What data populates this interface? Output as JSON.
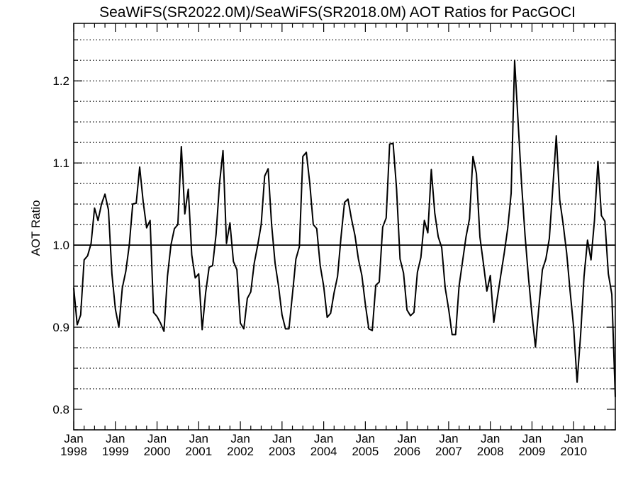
{
  "chart_data": {
    "type": "line",
    "title": "SeaWiFS(SR2022.0M)/SeaWiFS(SR2018.0M)  AOT Ratios for PacGOCI",
    "xlabel": "",
    "ylabel": "AOT Ratio",
    "xlim": [
      1998.0,
      2011.0
    ],
    "ylim": [
      0.775,
      1.27
    ],
    "yticks": [
      0.8,
      0.9,
      1.0,
      1.1,
      1.2
    ],
    "ytick_labels": [
      "0.8",
      "0.9",
      "1.0",
      "1.1",
      "1.2"
    ],
    "xticks": [
      1998,
      1999,
      2000,
      2001,
      2002,
      2003,
      2004,
      2005,
      2006,
      2007,
      2008,
      2009,
      2010
    ],
    "xtick_month": "Jan",
    "xtick_years": [
      "1998",
      "1999",
      "2000",
      "2001",
      "2002",
      "2003",
      "2004",
      "2005",
      "2006",
      "2007",
      "2008",
      "2009",
      "2010"
    ],
    "grid_y": [
      0.825,
      0.85,
      0.875,
      0.9,
      0.925,
      0.95,
      0.975,
      1.025,
      1.05,
      1.075,
      1.1,
      1.125,
      1.15,
      1.175,
      1.2,
      1.225,
      1.25
    ],
    "grid_style": "dotted horizontal",
    "reference_line": 1.0,
    "series": [
      {
        "x_start": 1998.0,
        "x_step": 0.08333,
        "values": [
          0.948,
          0.903,
          0.915,
          0.982,
          0.987,
          1.002,
          1.045,
          1.03,
          1.05,
          1.062,
          1.043,
          0.965,
          0.922,
          0.9,
          0.948,
          0.968,
          1.0,
          1.05,
          1.051,
          1.095,
          1.053,
          1.021,
          1.03,
          0.918,
          0.913,
          0.905,
          0.895,
          0.962,
          1.0,
          1.02,
          1.025,
          1.12,
          1.038,
          1.068,
          0.988,
          0.96,
          0.965,
          0.897,
          0.942,
          0.973,
          0.975,
          1.013,
          1.075,
          1.115,
          1.002,
          1.027,
          0.98,
          0.97,
          0.905,
          0.898,
          0.935,
          0.943,
          0.978,
          1.0,
          1.025,
          1.084,
          1.093,
          1.025,
          0.978,
          0.95,
          0.915,
          0.898,
          0.898,
          0.94,
          0.983,
          0.998,
          1.108,
          1.113,
          1.075,
          1.025,
          1.02,
          0.975,
          0.95,
          0.912,
          0.917,
          0.942,
          0.962,
          1.01,
          1.052,
          1.056,
          1.032,
          1.012,
          0.983,
          0.963,
          0.928,
          0.898,
          0.896,
          0.951,
          0.955,
          1.022,
          1.033,
          1.123,
          1.124,
          1.068,
          0.983,
          0.966,
          0.921,
          0.914,
          0.918,
          0.967,
          0.985,
          1.03,
          1.015,
          1.092,
          1.039,
          1.01,
          0.997,
          0.948,
          0.922,
          0.891,
          0.891,
          0.95,
          0.98,
          1.01,
          1.032,
          1.108,
          1.087,
          1.01,
          0.978,
          0.944,
          0.963,
          0.906,
          0.935,
          0.963,
          0.99,
          1.02,
          1.063,
          1.225,
          1.15,
          1.075,
          1.012,
          0.96,
          0.915,
          0.876,
          0.925,
          0.97,
          0.983,
          1.008,
          1.07,
          1.133,
          1.055,
          1.025,
          0.99,
          0.943,
          0.9,
          0.833,
          0.89,
          0.962,
          1.006,
          0.982,
          1.03,
          1.102,
          1.036,
          1.029,
          0.965,
          0.94,
          0.815
        ]
      }
    ]
  }
}
